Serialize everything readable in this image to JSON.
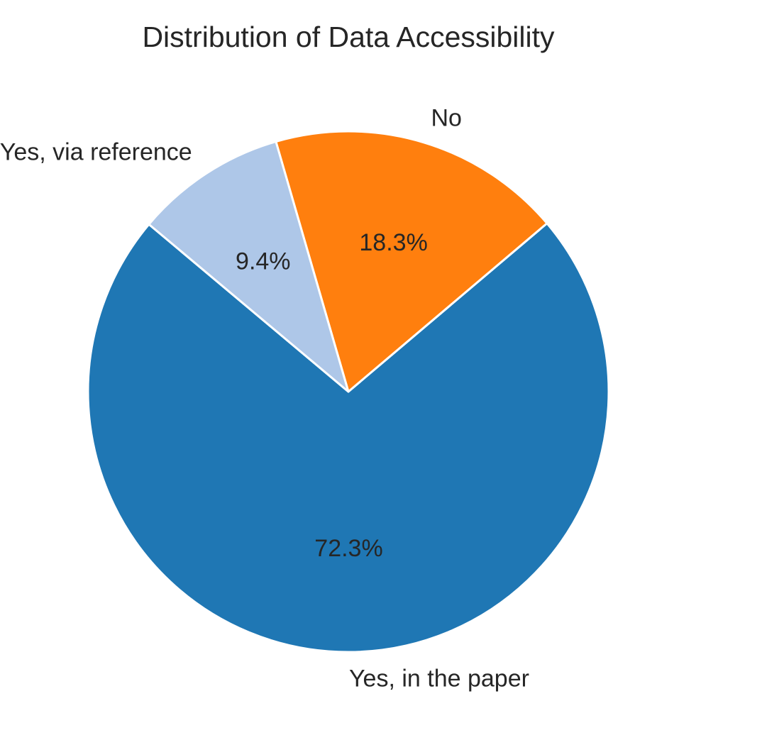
{
  "chart_data": {
    "type": "pie",
    "title": "Distribution of Data Accessibility",
    "categories": [
      "Yes, in the paper",
      "No",
      "Yes, via reference"
    ],
    "values": [
      72.3,
      18.3,
      9.4
    ],
    "value_labels": [
      "72.3%",
      "18.3%",
      "9.4%"
    ],
    "colors": [
      "#1f77b4",
      "#ff7f0e",
      "#aec7e8"
    ],
    "slice_edge_color": "#ffffff",
    "legend": "none"
  }
}
